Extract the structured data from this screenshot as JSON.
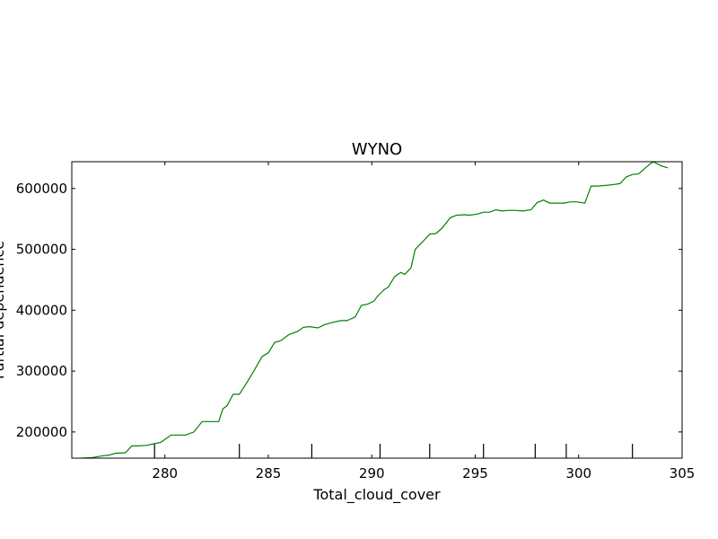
{
  "chart_data": {
    "type": "line",
    "title": "WYNO",
    "xlabel": "Total_cloud_cover",
    "ylabel": "Partial dependence",
    "xlim": [
      275.5,
      305
    ],
    "ylim": [
      157000,
      644000
    ],
    "xticks": [
      280,
      285,
      290,
      295,
      300,
      305
    ],
    "xtick_labels": [
      "280",
      "285",
      "290",
      "295",
      "300",
      "305"
    ],
    "yticks": [
      200000,
      300000,
      400000,
      500000,
      600000
    ],
    "ytick_labels": [
      "200000",
      "300000",
      "400000",
      "500000",
      "600000"
    ],
    "rug_x": [
      279.5,
      283.6,
      287.1,
      290.4,
      292.8,
      295.4,
      297.9,
      299.4,
      302.6
    ],
    "grid": false,
    "legend": "none",
    "series": [
      {
        "color": "#008000",
        "x": [
          276,
          276.5,
          277,
          277.3,
          277.6,
          278.1,
          278.4,
          278.6,
          279.1,
          279.4,
          279.8,
          280.3,
          280.7,
          281.0,
          281.4,
          281.8,
          282.1,
          282.6,
          282.8,
          283.0,
          283.3,
          283.6,
          284.0,
          284.3,
          284.7,
          285.0,
          285.3,
          285.6,
          286.0,
          286.4,
          286.7,
          287.0,
          287.4,
          287.7,
          288.1,
          288.5,
          288.8,
          289.2,
          289.5,
          289.8,
          290.1,
          290.3,
          290.6,
          290.8,
          291.1,
          291.4,
          291.6,
          291.9,
          292.1,
          292.5,
          292.8,
          293.1,
          293.4,
          293.8,
          294.1,
          294.5,
          294.7,
          295.1,
          295.4,
          295.7,
          296.0,
          296.3,
          296.6,
          296.9,
          297.3,
          297.7,
          298.0,
          298.3,
          298.6,
          298.9,
          299.3,
          299.6,
          299.9,
          300.3,
          300.6,
          300.9,
          301.3,
          301.6,
          302.0,
          302.3,
          302.6,
          302.9,
          303.3,
          303.6,
          304.0,
          304.3
        ],
        "y": [
          157000,
          158000,
          161000,
          162000,
          165000,
          166000,
          177000,
          177000,
          178000,
          180000,
          183000,
          195000,
          195000,
          195000,
          200000,
          217000,
          217000,
          217000,
          238000,
          243000,
          262000,
          262000,
          283000,
          300000,
          324000,
          330000,
          347000,
          350000,
          360000,
          365000,
          372000,
          373000,
          371000,
          376000,
          380000,
          383000,
          383000,
          389000,
          408000,
          410000,
          415000,
          424000,
          434000,
          438000,
          455000,
          462000,
          459000,
          470000,
          500000,
          514000,
          525000,
          526000,
          535000,
          552000,
          556000,
          557000,
          556000,
          558000,
          561000,
          561000,
          565000,
          563000,
          564000,
          564000,
          563000,
          565000,
          577000,
          581000,
          576000,
          576000,
          576000,
          578000,
          578000,
          576000,
          604000,
          604000,
          605000,
          606000,
          608000,
          619000,
          623000,
          624000,
          636000,
          644000,
          637000,
          634000
        ]
      }
    ]
  }
}
